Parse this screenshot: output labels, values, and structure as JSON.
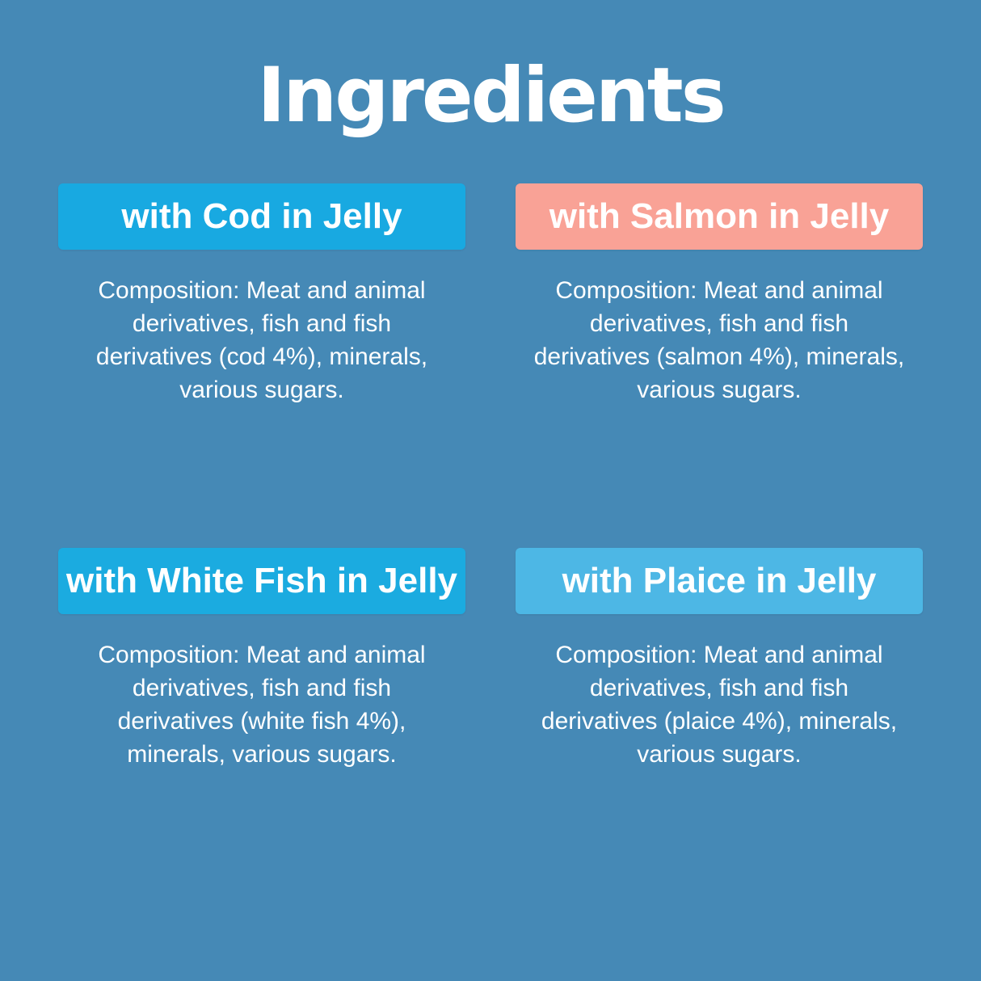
{
  "page": {
    "title": "Ingredients",
    "background_color": "#4589b6",
    "text_color": "#ffffff"
  },
  "cards": [
    {
      "id": "cod",
      "header": "with Cod in Jelly",
      "header_color": "#18a9e1",
      "composition_lines": [
        "Composition: Meat and animal",
        "derivatives, fish and fish",
        "derivatives (cod 4%), minerals,",
        "various sugars."
      ]
    },
    {
      "id": "salmon",
      "header": "with Salmon in Jelly",
      "header_color": "#f9a296",
      "composition_lines": [
        "Composition: Meat and animal",
        "derivatives, fish and fish",
        "derivatives (salmon 4%), minerals,",
        "various sugars."
      ]
    },
    {
      "id": "white-fish",
      "header": "with White Fish in Jelly",
      "header_color": "#1babe0",
      "composition_lines": [
        "Composition: Meat and animal",
        "derivatives, fish and fish",
        "derivatives (white fish 4%),",
        "minerals, various sugars."
      ]
    },
    {
      "id": "plaice",
      "header": "with Plaice in Jelly",
      "header_color": "#4db7e5",
      "composition_lines": [
        "Composition: Meat and animal",
        "derivatives, fish and fish",
        "derivatives (plaice 4%), minerals,",
        "various sugars."
      ]
    }
  ]
}
